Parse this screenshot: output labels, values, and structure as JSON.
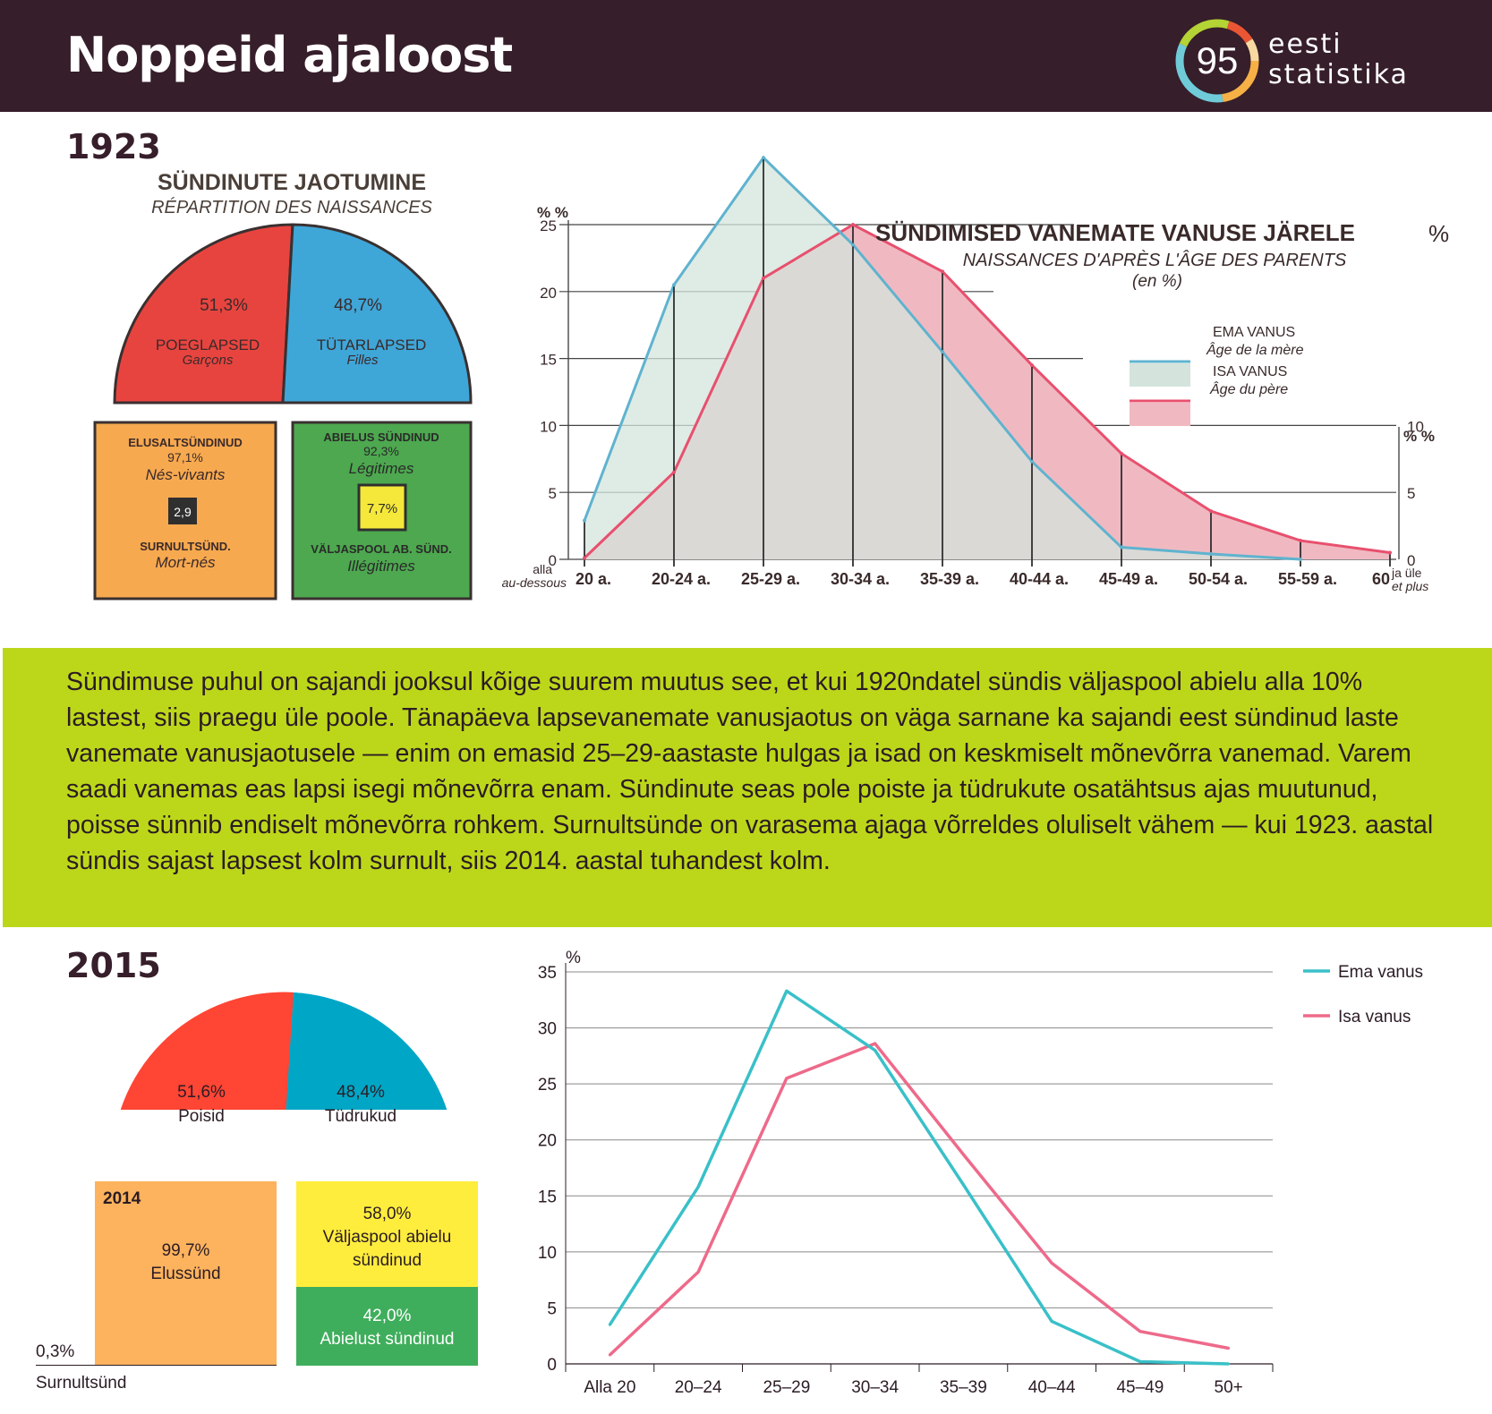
{
  "header": {
    "title": "Noppeid ajaloost",
    "logo_number": "95",
    "logo_line1": "eesti",
    "logo_line2": "statistika"
  },
  "section_1923": {
    "year": "1923",
    "pie": {
      "title": "SÜNDINUTE JAOTUMINE",
      "subtitle": "RÉPARTITION DES NAISSANCES",
      "boys": {
        "pct": "51,3%",
        "label": "POEGLAPSED",
        "label_fr": "Garçons",
        "value": 51.3
      },
      "girls": {
        "pct": "48,7%",
        "label": "TÜTARLAPSED",
        "label_fr": "Filles",
        "value": 48.7
      }
    },
    "live_box": {
      "label": "ELUSALTSÜNDINUD",
      "pct": "97,1%",
      "label_fr": "Nés-vivants",
      "still_pct": "2,9",
      "still_label": "SURNULTSÜND.",
      "still_label_fr": "Mort-nés"
    },
    "marital_box": {
      "label": "ABIELUS SÜNDINUD",
      "pct": "92,3%",
      "label_fr": "Légitimes",
      "out_pct": "7,7%",
      "out_label": "VÄLJASPOOL AB. SÜND.",
      "out_label_fr": "Illégitimes"
    }
  },
  "chart_1923": {
    "title": "SÜNDIMISED VANEMATE VANUSE JÄRELE",
    "title_unit": "%",
    "subtitle": "NAISSANCES D'APRÈS L'ÂGE DES PARENTS",
    "subtitle2": "(en %)",
    "axis_unit": "% %",
    "axis_unit_right": "% %",
    "legend_mother": "EMA VANUS",
    "legend_mother_fr": "Âge de la mère",
    "legend_father": "ISA VANUS",
    "legend_father_fr": "Âge du père",
    "x_first_1": "alla",
    "x_first_2": "au-dessous",
    "x_last_1": "ja üle",
    "x_last_2": "et plus",
    "colors": {
      "mother": "#5fb3cf",
      "father": "#e8506e",
      "mother_fill": "#d4e4dc",
      "father_fill": "#f0b9c1"
    }
  },
  "band": {
    "text": "Sündimuse puhul on sajandi jooksul kõige suurem muutus see, et kui 1920ndatel sündis väljaspool abielu alla 10% lastest, siis praegu üle poole. Tänapäeva lapsevanemate vanusjaotus on väga sarnane ka sajandi eest sündinud laste vanemate vanusjaotusele — enim on emasid 25–29-aastaste hulgas ja isad on keskmiselt mõnevõrra vanemad. Varem saadi vanemas eas lapsi isegi mõnevõrra enam. Sündinute seas pole poiste ja tüdrukute osatähtsus ajas muutunud, poisse sünnib endiselt mõnevõrra rohkem. Surnultsünde on varasema ajaga võrreldes oluliselt vähem — kui 1923. aastal sündis sajast lapsest kolm surnult, siis 2014. aastal tuhandest kolm."
  },
  "section_2015": {
    "year": "2015",
    "pie": {
      "boys": {
        "pct": "51,6%",
        "label": "Poisid",
        "value": 51.6,
        "color": "#ff4534"
      },
      "girls": {
        "pct": "48,4%",
        "label": "Tüdrukud",
        "value": 48.4,
        "color": "#00a6c6"
      }
    },
    "live_box": {
      "year": "2014",
      "pct": "99,7%",
      "label": "Elussünd",
      "color": "#fdb35e"
    },
    "still": {
      "pct": "0,3%",
      "label": "Surnultsünd"
    },
    "out_box": {
      "pct": "58,0%",
      "label1": "Väljaspool abielu",
      "label2": "sündinud",
      "color": "#ffed3d"
    },
    "in_box": {
      "pct": "42,0%",
      "label": "Abielust sündinud",
      "color": "#3fae5c"
    }
  },
  "chart_data": [
    {
      "type": "area",
      "categories": [
        "20 a.",
        "20-24 a.",
        "25-29 a.",
        "30-34 a.",
        "35-39 a.",
        "40-44 a.",
        "45-49 a.",
        "50-54 a.",
        "55-59 a.",
        "60"
      ],
      "series": [
        {
          "name": "EMA VANUS",
          "values": [
            2.9,
            20.5,
            30.0,
            23.5,
            15.5,
            7.3,
            0.9,
            0.4,
            0.0,
            null
          ]
        },
        {
          "name": "ISA VANUS",
          "values": [
            0.1,
            6.5,
            21.0,
            25.0,
            21.5,
            14.5,
            7.9,
            3.6,
            1.4,
            0.5
          ]
        }
      ],
      "title": "SÜNDIMISED VANEMATE VANUSE JÄRELE",
      "ylim": [
        0,
        25
      ],
      "yticks": [
        0,
        5,
        10,
        15,
        20,
        25
      ],
      "yticks_right": [
        0,
        5,
        10
      ],
      "ylabel": "% %"
    },
    {
      "type": "line",
      "categories": [
        "Alla 20",
        "20–24",
        "25–29",
        "30–34",
        "35–39",
        "40–44",
        "45–49",
        "50+"
      ],
      "series": [
        {
          "name": "Ema vanus",
          "values": [
            3.5,
            15.8,
            33.3,
            28.0,
            16.0,
            3.8,
            0.2,
            0.0
          ],
          "color": "#39c0c8"
        },
        {
          "name": "Isa vanus",
          "values": [
            0.8,
            8.2,
            25.5,
            28.6,
            18.7,
            9.0,
            2.9,
            1.4
          ],
          "color": "#ee6a8a"
        }
      ],
      "ylabel": "%",
      "ylim": [
        0,
        35
      ],
      "yticks": [
        0,
        5,
        10,
        15,
        20,
        25,
        30,
        35
      ],
      "grid": true,
      "legend": "top-right"
    }
  ]
}
